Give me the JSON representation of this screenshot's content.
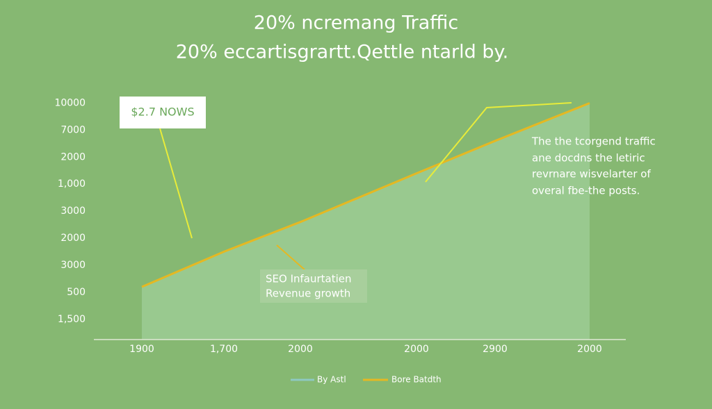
{
  "chart_data": {
    "type": "area",
    "title": [
      "20% ncremang  Traffic",
      "20%  eccartisgrartt.Qettle  ntarld by."
    ],
    "categories": [
      "1900",
      "1,700",
      "2000",
      "2000",
      "2900",
      "2000"
    ],
    "series": [
      {
        "name": "Bore Batdth",
        "color": "#e5b822",
        "fill": "#9ccb94",
        "values": [
          1.2,
          2.5,
          3.6,
          5.4,
          6.6,
          8.0
        ]
      }
    ],
    "legend_extra": {
      "name": "By Astl",
      "color": "#8ec9c2"
    },
    "ylim": [
      -0.75,
      8.5
    ],
    "yticks": [
      {
        "value": 0,
        "label": "1,500"
      },
      {
        "value": 1,
        "label": "500"
      },
      {
        "value": 2,
        "label": "3000"
      },
      {
        "value": 3,
        "label": "2000"
      },
      {
        "value": 4,
        "label": "3000"
      },
      {
        "value": 5,
        "label": "1,000"
      },
      {
        "value": 6,
        "label": "2000"
      },
      {
        "value": 7,
        "label": "7000"
      },
      {
        "value": 8,
        "label": "10000"
      }
    ],
    "annotations": {
      "box": "$2.7 NOWS",
      "note": [
        "The the tcorgend traffic",
        "ane docdns the letiric",
        "revrnare wisvelarter of",
        "overal fbe-the posts."
      ],
      "label": [
        "SEO Infaurtatien",
        "Revenue growth"
      ]
    }
  }
}
